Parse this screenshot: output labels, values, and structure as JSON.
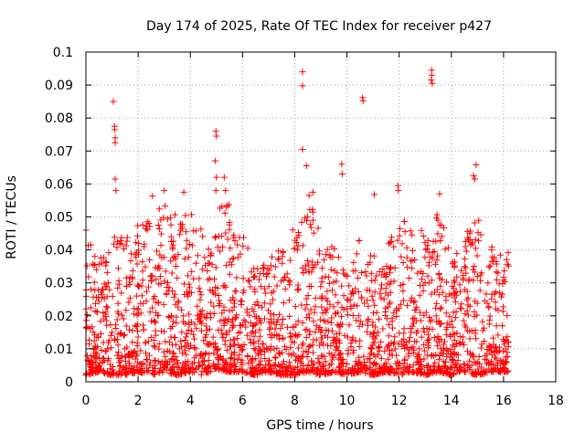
{
  "chart_data": {
    "type": "scatter",
    "title": "Day 174 of 2025, Rate Of TEC Index for receiver p427",
    "xlabel": "GPS time / hours",
    "ylabel": "ROTI / TECUs",
    "xlim": [
      0,
      18
    ],
    "ylim": [
      0,
      0.1
    ],
    "xticks": [
      0,
      2,
      4,
      6,
      8,
      10,
      12,
      14,
      16,
      18
    ],
    "xtick_labels": [
      "0",
      "2",
      "4",
      "6",
      "8",
      "10",
      "12",
      "14",
      "16",
      "18"
    ],
    "yticks": [
      0,
      0.01,
      0.02,
      0.03,
      0.04,
      0.05,
      0.06,
      0.07,
      0.08,
      0.09,
      0.1
    ],
    "ytick_labels": [
      "0",
      "0.01",
      "0.02",
      "0.03",
      "0.04",
      "0.05",
      "0.06",
      "0.07",
      "0.08",
      "0.09",
      "0.1"
    ],
    "grid": true,
    "marker": "plus",
    "color": "#ff0000",
    "data_extent_hours": [
      0,
      16.2
    ],
    "series": [
      {
        "name": "ROTI",
        "outliers": [
          [
            1.05,
            0.085
          ],
          [
            1.1,
            0.0775
          ],
          [
            1.1,
            0.0765
          ],
          [
            1.12,
            0.074
          ],
          [
            1.12,
            0.0725
          ],
          [
            1.12,
            0.0615
          ],
          [
            1.15,
            0.058
          ],
          [
            4.98,
            0.076
          ],
          [
            5.0,
            0.0745
          ],
          [
            4.95,
            0.067
          ],
          [
            5.0,
            0.062
          ],
          [
            5.3,
            0.062
          ],
          [
            8.3,
            0.094
          ],
          [
            8.3,
            0.0898
          ],
          [
            8.3,
            0.0705
          ],
          [
            8.45,
            0.0655
          ],
          [
            9.8,
            0.066
          ],
          [
            9.82,
            0.063
          ],
          [
            10.6,
            0.0862
          ],
          [
            10.62,
            0.0852
          ],
          [
            11.05,
            0.0568
          ],
          [
            11.95,
            0.0595
          ],
          [
            11.97,
            0.058
          ],
          [
            13.25,
            0.0945
          ],
          [
            13.25,
            0.093
          ],
          [
            13.23,
            0.0915
          ],
          [
            13.27,
            0.0905
          ],
          [
            13.55,
            0.057
          ],
          [
            14.85,
            0.0625
          ],
          [
            14.9,
            0.0615
          ],
          [
            14.95,
            0.0658
          ],
          [
            2.55,
            0.0563
          ],
          [
            3.0,
            0.058
          ],
          [
            3.75,
            0.0575
          ],
          [
            4.98,
            0.058
          ],
          [
            5.35,
            0.058
          ],
          [
            8.55,
            0.0565
          ],
          [
            8.7,
            0.0575
          ],
          [
            0.0,
            0.046
          ]
        ],
        "envelope": {
          "hours": [
            0,
            0.5,
            1,
            1.5,
            2,
            2.5,
            3,
            3.5,
            4,
            4.5,
            5,
            5.5,
            6,
            6.5,
            7,
            7.5,
            8,
            8.5,
            9,
            9.5,
            10,
            10.5,
            11,
            11.5,
            12,
            12.5,
            13,
            13.5,
            14,
            14.5,
            15,
            15.5,
            16
          ],
          "upper": [
            0.045,
            0.038,
            0.044,
            0.045,
            0.048,
            0.05,
            0.055,
            0.05,
            0.052,
            0.045,
            0.052,
            0.055,
            0.045,
            0.035,
            0.038,
            0.042,
            0.048,
            0.055,
            0.048,
            0.042,
            0.036,
            0.045,
            0.038,
            0.04,
            0.052,
            0.046,
            0.047,
            0.052,
            0.042,
            0.045,
            0.05,
            0.042,
            0.04
          ],
          "lower": [
            0.002,
            0.003,
            0.002,
            0.002,
            0.003,
            0.002,
            0.003,
            0.002,
            0.003,
            0.002,
            0.004,
            0.003,
            0.003,
            0.002,
            0.003,
            0.002,
            0.002,
            0.003,
            0.002,
            0.003,
            0.002,
            0.003,
            0.002,
            0.003,
            0.002,
            0.003,
            0.002,
            0.003,
            0.002,
            0.003,
            0.002,
            0.003,
            0.003
          ]
        },
        "approx_point_count": 2400
      }
    ]
  }
}
